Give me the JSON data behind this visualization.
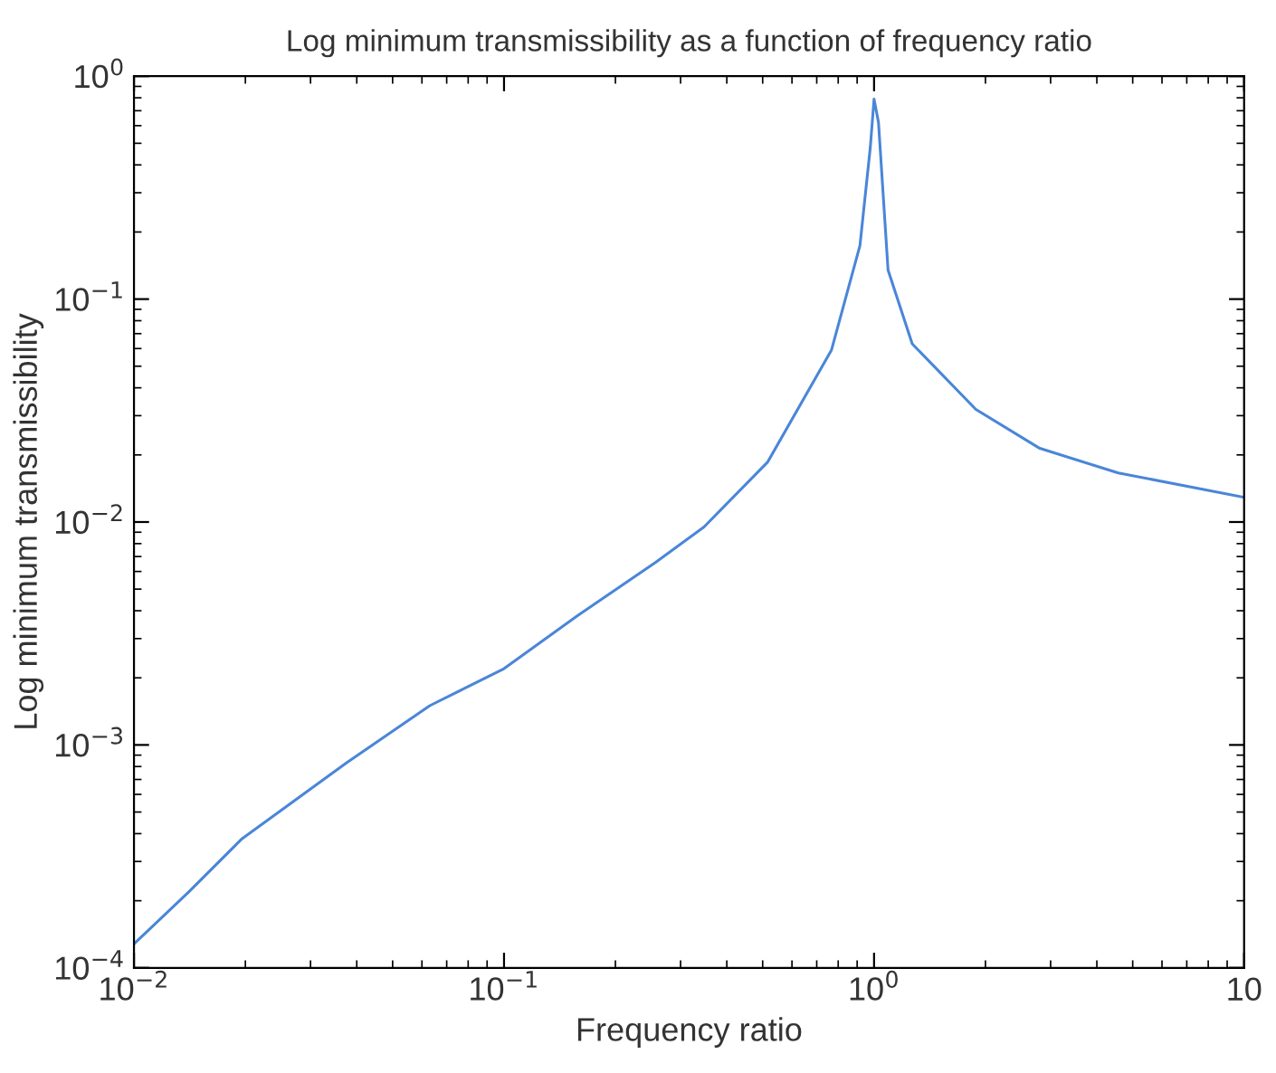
{
  "chart_data": {
    "type": "line",
    "title": "Log minimum transmissibility as a function of frequency ratio",
    "xlabel": "Frequency ratio",
    "ylabel": "Log minimum transmissibility",
    "log": "xy",
    "grid": false,
    "xlim": [
      0.01,
      10
    ],
    "ylim": [
      0.0001,
      1
    ],
    "xticks": [
      {
        "value": 0.01,
        "label": "10$^{−2}$"
      },
      {
        "value": 0.1,
        "label": "10$^{−1}$"
      },
      {
        "value": 1,
        "label": "10$^{0}$"
      },
      10
    ],
    "yticks": [
      {
        "value": 0.0001,
        "label": "10$^{−4}$"
      },
      {
        "value": 0.001,
        "label": "10$^{−3}$"
      },
      {
        "value": 0.01,
        "label": "10$^{−2}$"
      },
      {
        "value": 0.1,
        "label": "10$^{−1}$"
      },
      {
        "value": 1,
        "label": "10$^{0}$"
      }
    ],
    "series": [
      {
        "color": "#4a86d8",
        "x": [
          0.01,
          0.0141,
          0.0196,
          0.0375,
          0.063,
          0.1,
          0.158,
          0.257,
          0.347,
          0.516,
          0.767,
          0.916,
          0.977,
          1.0,
          1.028,
          1.091,
          1.268,
          1.884,
          2.805,
          4.57,
          10
        ],
        "values": [
          0.000128,
          0.00022,
          0.00038,
          0.00083,
          0.0015,
          0.0022,
          0.0038,
          0.0066,
          0.0095,
          0.0186,
          0.059,
          0.174,
          0.48,
          0.79,
          0.62,
          0.135,
          0.063,
          0.032,
          0.0214,
          0.0166,
          0.0129
        ]
      }
    ]
  }
}
